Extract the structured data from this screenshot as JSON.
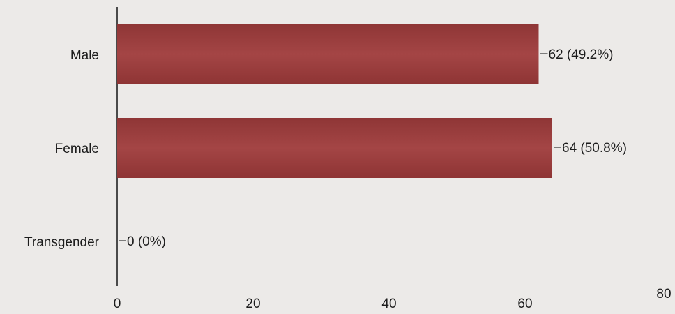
{
  "chart_data": {
    "type": "bar",
    "orientation": "horizontal",
    "categories": [
      "Male",
      "Female",
      "Transgender"
    ],
    "values": [
      62,
      64,
      0
    ],
    "data_labels": [
      "62 (49.2%)",
      "64 (50.8%)",
      "0 (0%)"
    ],
    "x_ticks": [
      "0",
      "20",
      "40",
      "60",
      "80"
    ],
    "xlim": [
      0,
      80
    ],
    "grid": false,
    "bar_color": "#9c3e3e"
  }
}
